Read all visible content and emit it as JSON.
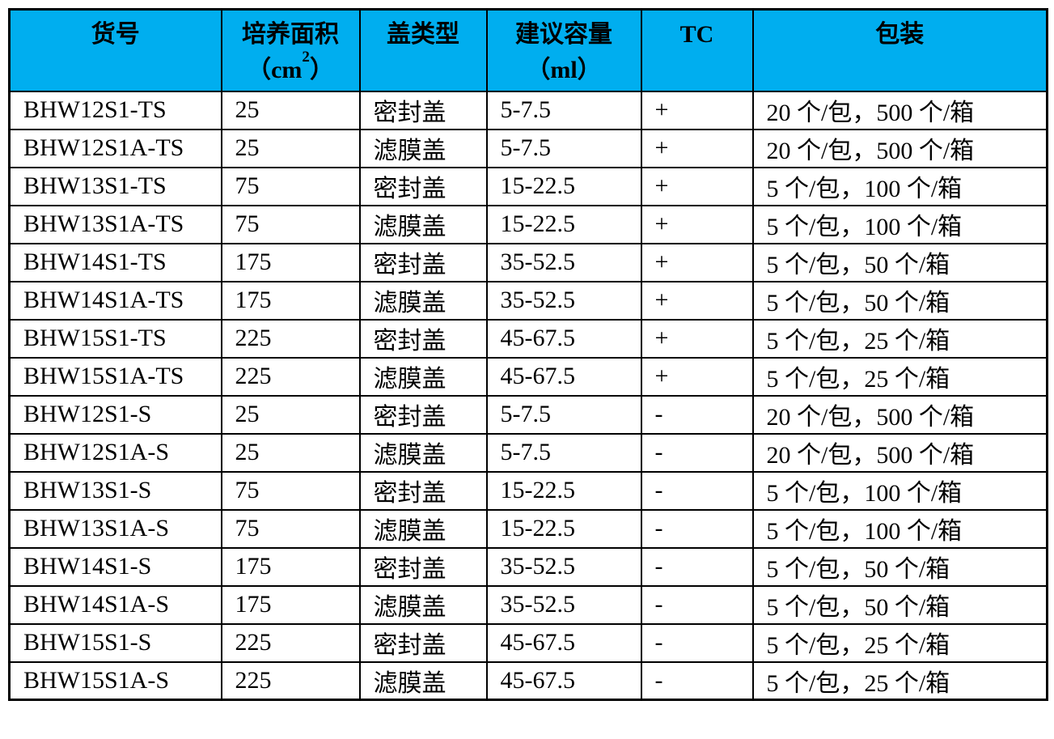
{
  "colors": {
    "header_bg": "#00AEEF",
    "border": "#000000",
    "text": "#000000"
  },
  "table": {
    "columns": [
      {
        "label": "货号"
      },
      {
        "line1": "培养面积",
        "unit_prefix": "（cm",
        "unit_sup": "2",
        "unit_suffix": "）"
      },
      {
        "label": "盖类型"
      },
      {
        "line1": "建议容量",
        "line2": "（ml）"
      },
      {
        "label": "TC"
      },
      {
        "label": "包装"
      }
    ],
    "rows": [
      {
        "code": "BHW12S1-TS",
        "area": "25",
        "cap_type": "密封盖",
        "volume": "5-7.5",
        "tc": "+",
        "packaging": "20 个/包，500 个/箱"
      },
      {
        "code": "BHW12S1A-TS",
        "area": "25",
        "cap_type": "滤膜盖",
        "volume": "5-7.5",
        "tc": "+",
        "packaging": "20 个/包，500 个/箱"
      },
      {
        "code": "BHW13S1-TS",
        "area": "75",
        "cap_type": "密封盖",
        "volume": "15-22.5",
        "tc": "+",
        "packaging": "5 个/包，100 个/箱"
      },
      {
        "code": "BHW13S1A-TS",
        "area": "75",
        "cap_type": "滤膜盖",
        "volume": "15-22.5",
        "tc": "+",
        "packaging": "5 个/包，100 个/箱"
      },
      {
        "code": "BHW14S1-TS",
        "area": "175",
        "cap_type": "密封盖",
        "volume": "35-52.5",
        "tc": "+",
        "packaging": "5 个/包，50 个/箱"
      },
      {
        "code": "BHW14S1A-TS",
        "area": "175",
        "cap_type": "滤膜盖",
        "volume": "35-52.5",
        "tc": "+",
        "packaging": "5 个/包，50 个/箱"
      },
      {
        "code": "BHW15S1-TS",
        "area": "225",
        "cap_type": "密封盖",
        "volume": "45-67.5",
        "tc": "+",
        "packaging": "5 个/包，25 个/箱"
      },
      {
        "code": "BHW15S1A-TS",
        "area": "225",
        "cap_type": "滤膜盖",
        "volume": "45-67.5",
        "tc": "+",
        "packaging": "5 个/包，25 个/箱"
      },
      {
        "code": "BHW12S1-S",
        "area": "25",
        "cap_type": "密封盖",
        "volume": "5-7.5",
        "tc": "-",
        "packaging": "20 个/包，500 个/箱"
      },
      {
        "code": "BHW12S1A-S",
        "area": "25",
        "cap_type": "滤膜盖",
        "volume": "5-7.5",
        "tc": "-",
        "packaging": "20 个/包，500 个/箱"
      },
      {
        "code": "BHW13S1-S",
        "area": "75",
        "cap_type": "密封盖",
        "volume": "15-22.5",
        "tc": "-",
        "packaging": "5 个/包，100 个/箱"
      },
      {
        "code": "BHW13S1A-S",
        "area": "75",
        "cap_type": "滤膜盖",
        "volume": "15-22.5",
        "tc": "-",
        "packaging": "5 个/包，100 个/箱"
      },
      {
        "code": "BHW14S1-S",
        "area": "175",
        "cap_type": "密封盖",
        "volume": "35-52.5",
        "tc": "-",
        "packaging": "5 个/包，50 个/箱"
      },
      {
        "code": "BHW14S1A-S",
        "area": "175",
        "cap_type": "滤膜盖",
        "volume": "35-52.5",
        "tc": "-",
        "packaging": "5 个/包，50 个/箱"
      },
      {
        "code": "BHW15S1-S",
        "area": "225",
        "cap_type": "密封盖",
        "volume": "45-67.5",
        "tc": "-",
        "packaging": "5 个/包，25 个/箱"
      },
      {
        "code": "BHW15S1A-S",
        "area": "225",
        "cap_type": "滤膜盖",
        "volume": "45-67.5",
        "tc": "-",
        "packaging": "5 个/包，25 个/箱"
      }
    ]
  }
}
